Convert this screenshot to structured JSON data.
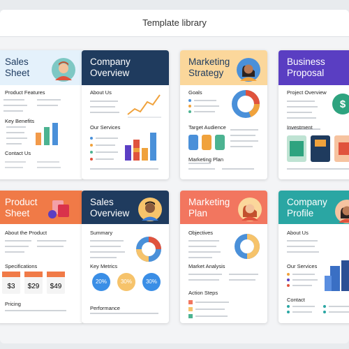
{
  "header": {
    "title": "Template library"
  },
  "cards": [
    {
      "title": "Sales Sheet",
      "sections": [
        "Product Features",
        "Key Benefits",
        "Contact Us"
      ]
    },
    {
      "title": "Company Overview",
      "sections": [
        "About Us",
        "Our Services"
      ]
    },
    {
      "title": "Marketing Strategy",
      "sections": [
        "Goals",
        "Target Audience",
        "Marketing Plan"
      ]
    },
    {
      "title": "Business Proposal",
      "sections": [
        "Project Overview",
        "Investment"
      ]
    },
    {
      "title": "Product Sheet",
      "sections": [
        "About the Product",
        "Specifications",
        "Pricing"
      ],
      "prices": [
        "$3",
        "$29",
        "$49"
      ]
    },
    {
      "title": "Sales Overview",
      "sections": [
        "Summary",
        "Key Metrics",
        "Performance"
      ],
      "metrics": [
        "20%",
        "30%",
        "30%"
      ]
    },
    {
      "title": "Marketing Plan",
      "sections": [
        "Objectives",
        "Market Analysis",
        "Action Steps"
      ]
    },
    {
      "title": "Company Profile",
      "sections": [
        "About Us",
        "Our Services",
        "Contact"
      ]
    }
  ]
}
